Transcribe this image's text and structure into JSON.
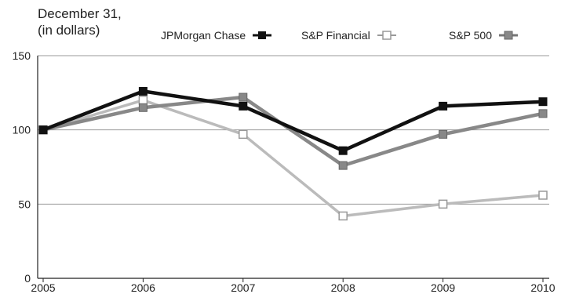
{
  "chart_data": {
    "type": "line",
    "title_lines": [
      "December 31,",
      "(in dollars)"
    ],
    "categories": [
      "2005",
      "2006",
      "2007",
      "2008",
      "2009",
      "2010"
    ],
    "ylim": [
      0,
      150
    ],
    "yticks": [
      "0",
      "50",
      "100",
      "150"
    ],
    "grid": "horizontal at 50, 100, 150",
    "legend_position": "top",
    "series": [
      {
        "name": "JPMorgan Chase",
        "values": [
          100,
          126,
          116,
          86,
          116,
          119
        ],
        "color": "#111111",
        "marker": "filled-square"
      },
      {
        "name": "S&P Financial",
        "values": [
          100,
          120,
          97,
          42,
          50,
          56
        ],
        "color": "#bbbbbb",
        "marker": "open-square"
      },
      {
        "name": "S&P 500",
        "values": [
          100,
          115,
          122,
          76,
          97,
          111
        ],
        "color": "#888888",
        "marker": "filled-square"
      }
    ]
  }
}
